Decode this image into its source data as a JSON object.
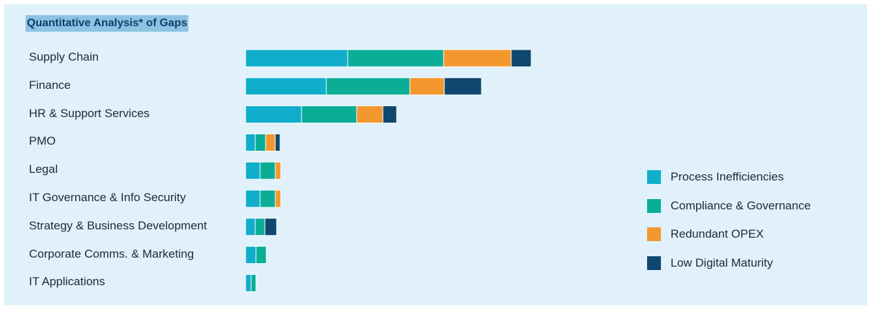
{
  "chart_data": {
    "type": "bar",
    "orientation": "horizontal",
    "stacked": true,
    "title": "Quantitative Analysis* of Gaps",
    "categories": [
      "Supply Chain",
      "Finance",
      "HR & Support Services",
      "PMO",
      "Legal",
      "IT Governance & Info Security",
      "Strategy & Business Development",
      "Corporate Comms. & Marketing",
      "IT Applications"
    ],
    "series": [
      {
        "name": "Process Inefficiencies",
        "color": "#10aecb",
        "values": [
          148,
          117,
          81,
          14,
          21,
          21,
          14,
          15,
          8
        ]
      },
      {
        "name": "Compliance & Governance",
        "color": "#0aae97",
        "values": [
          139,
          121,
          80,
          15,
          22,
          22,
          14,
          15,
          7
        ]
      },
      {
        "name": "Redundant OPEX",
        "color": "#f3982f",
        "values": [
          98,
          50,
          38,
          14,
          8,
          8,
          0,
          0,
          0
        ]
      },
      {
        "name": "Low Digital Maturity",
        "color": "#0e4870",
        "values": [
          29,
          54,
          20,
          7,
          0,
          0,
          17,
          0,
          0
        ]
      }
    ],
    "legend_position": "right",
    "grid": false
  }
}
